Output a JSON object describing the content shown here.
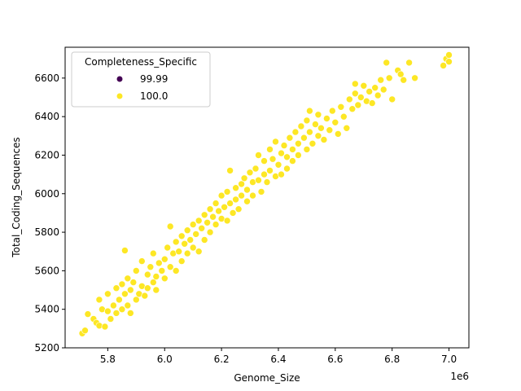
{
  "chart_data": {
    "type": "scatter",
    "title": "",
    "xlabel": "Genome_Size",
    "ylabel": "Total_Coding_Sequences",
    "x_offset_label": "1e6",
    "xlim": [
      5.65,
      7.07
    ],
    "ylim": [
      5200,
      6760
    ],
    "x_ticks": [
      5.8,
      6.0,
      6.2,
      6.4,
      6.6,
      6.8,
      7.0
    ],
    "x_tick_labels": [
      "5.8",
      "6.0",
      "6.2",
      "6.4",
      "6.6",
      "6.8",
      "7.0"
    ],
    "y_ticks": [
      5200,
      5400,
      5600,
      5800,
      6000,
      6200,
      6400,
      6600
    ],
    "y_tick_labels": [
      "5200",
      "5400",
      "5600",
      "5800",
      "6000",
      "6200",
      "6400",
      "6600"
    ],
    "grid": false,
    "legend": {
      "title": "Completeness_Specific",
      "position": "top-left",
      "entries": [
        {
          "label": "99.99",
          "color": "#440154"
        },
        {
          "label": "100.0",
          "color": "#fde725"
        }
      ]
    },
    "series": [
      {
        "name": "100.0",
        "color": "#fde725",
        "points": [
          [
            5.71,
            5275
          ],
          [
            5.72,
            5290
          ],
          [
            5.73,
            5375
          ],
          [
            5.75,
            5350
          ],
          [
            5.76,
            5330
          ],
          [
            5.77,
            5315
          ],
          [
            5.77,
            5450
          ],
          [
            5.78,
            5400
          ],
          [
            5.79,
            5310
          ],
          [
            5.8,
            5390
          ],
          [
            5.8,
            5480
          ],
          [
            5.81,
            5350
          ],
          [
            5.82,
            5420
          ],
          [
            5.83,
            5510
          ],
          [
            5.83,
            5380
          ],
          [
            5.84,
            5450
          ],
          [
            5.85,
            5530
          ],
          [
            5.85,
            5400
          ],
          [
            5.86,
            5705
          ],
          [
            5.86,
            5480
          ],
          [
            5.87,
            5420
          ],
          [
            5.87,
            5560
          ],
          [
            5.88,
            5500
          ],
          [
            5.88,
            5380
          ],
          [
            5.89,
            5540
          ],
          [
            5.9,
            5450
          ],
          [
            5.9,
            5600
          ],
          [
            5.91,
            5480
          ],
          [
            5.92,
            5520
          ],
          [
            5.92,
            5650
          ],
          [
            5.93,
            5470
          ],
          [
            5.94,
            5580
          ],
          [
            5.94,
            5510
          ],
          [
            5.95,
            5620
          ],
          [
            5.96,
            5540
          ],
          [
            5.96,
            5690
          ],
          [
            5.97,
            5570
          ],
          [
            5.97,
            5500
          ],
          [
            5.98,
            5640
          ],
          [
            5.99,
            5600
          ],
          [
            6.0,
            5660
          ],
          [
            6.0,
            5560
          ],
          [
            6.01,
            5720
          ],
          [
            6.02,
            5620
          ],
          [
            6.02,
            5830
          ],
          [
            6.03,
            5690
          ],
          [
            6.04,
            5750
          ],
          [
            6.04,
            5600
          ],
          [
            6.05,
            5700
          ],
          [
            6.06,
            5780
          ],
          [
            6.06,
            5650
          ],
          [
            6.07,
            5740
          ],
          [
            6.08,
            5690
          ],
          [
            6.08,
            5810
          ],
          [
            6.09,
            5760
          ],
          [
            6.1,
            5720
          ],
          [
            6.1,
            5840
          ],
          [
            6.11,
            5790
          ],
          [
            6.12,
            5700
          ],
          [
            6.12,
            5860
          ],
          [
            6.13,
            5820
          ],
          [
            6.14,
            5760
          ],
          [
            6.14,
            5890
          ],
          [
            6.15,
            5850
          ],
          [
            6.16,
            5920
          ],
          [
            6.16,
            5800
          ],
          [
            6.17,
            5880
          ],
          [
            6.18,
            5950
          ],
          [
            6.18,
            5840
          ],
          [
            6.19,
            5910
          ],
          [
            6.2,
            5870
          ],
          [
            6.2,
            5990
          ],
          [
            6.21,
            5930
          ],
          [
            6.22,
            5860
          ],
          [
            6.22,
            6010
          ],
          [
            6.23,
            6120
          ],
          [
            6.23,
            5950
          ],
          [
            6.24,
            5900
          ],
          [
            6.25,
            6030
          ],
          [
            6.25,
            5970
          ],
          [
            6.26,
            5920
          ],
          [
            6.27,
            6050
          ],
          [
            6.27,
            5990
          ],
          [
            6.28,
            6080
          ],
          [
            6.29,
            5960
          ],
          [
            6.29,
            6020
          ],
          [
            6.3,
            6110
          ],
          [
            6.31,
            6060
          ],
          [
            6.31,
            5990
          ],
          [
            6.32,
            6130
          ],
          [
            6.33,
            6070
          ],
          [
            6.33,
            6200
          ],
          [
            6.34,
            6010
          ],
          [
            6.35,
            6100
          ],
          [
            6.35,
            6170
          ],
          [
            6.36,
            6060
          ],
          [
            6.37,
            6230
          ],
          [
            6.37,
            6120
          ],
          [
            6.38,
            6180
          ],
          [
            6.39,
            6090
          ],
          [
            6.39,
            6270
          ],
          [
            6.4,
            6150
          ],
          [
            6.41,
            6210
          ],
          [
            6.41,
            6100
          ],
          [
            6.42,
            6250
          ],
          [
            6.43,
            6190
          ],
          [
            6.43,
            6130
          ],
          [
            6.44,
            6290
          ],
          [
            6.45,
            6230
          ],
          [
            6.45,
            6170
          ],
          [
            6.46,
            6320
          ],
          [
            6.47,
            6260
          ],
          [
            6.47,
            6200
          ],
          [
            6.48,
            6350
          ],
          [
            6.49,
            6290
          ],
          [
            6.5,
            6230
          ],
          [
            6.5,
            6380
          ],
          [
            6.51,
            6430
          ],
          [
            6.51,
            6320
          ],
          [
            6.52,
            6260
          ],
          [
            6.53,
            6360
          ],
          [
            6.54,
            6300
          ],
          [
            6.54,
            6410
          ],
          [
            6.55,
            6340
          ],
          [
            6.56,
            6280
          ],
          [
            6.57,
            6390
          ],
          [
            6.58,
            6330
          ],
          [
            6.59,
            6430
          ],
          [
            6.6,
            6370
          ],
          [
            6.61,
            6310
          ],
          [
            6.62,
            6450
          ],
          [
            6.63,
            6400
          ],
          [
            6.64,
            6340
          ],
          [
            6.65,
            6490
          ],
          [
            6.66,
            6440
          ],
          [
            6.67,
            6520
          ],
          [
            6.67,
            6570
          ],
          [
            6.68,
            6460
          ],
          [
            6.69,
            6500
          ],
          [
            6.7,
            6560
          ],
          [
            6.71,
            6480
          ],
          [
            6.72,
            6530
          ],
          [
            6.73,
            6470
          ],
          [
            6.74,
            6550
          ],
          [
            6.75,
            6510
          ],
          [
            6.76,
            6590
          ],
          [
            6.77,
            6540
          ],
          [
            6.78,
            6680
          ],
          [
            6.79,
            6600
          ],
          [
            6.8,
            6490
          ],
          [
            6.82,
            6640
          ],
          [
            6.83,
            6620
          ],
          [
            6.84,
            6590
          ],
          [
            6.86,
            6680
          ],
          [
            6.88,
            6600
          ],
          [
            6.98,
            6665
          ],
          [
            6.99,
            6700
          ],
          [
            7.0,
            6685
          ],
          [
            7.0,
            6720
          ]
        ]
      }
    ]
  }
}
